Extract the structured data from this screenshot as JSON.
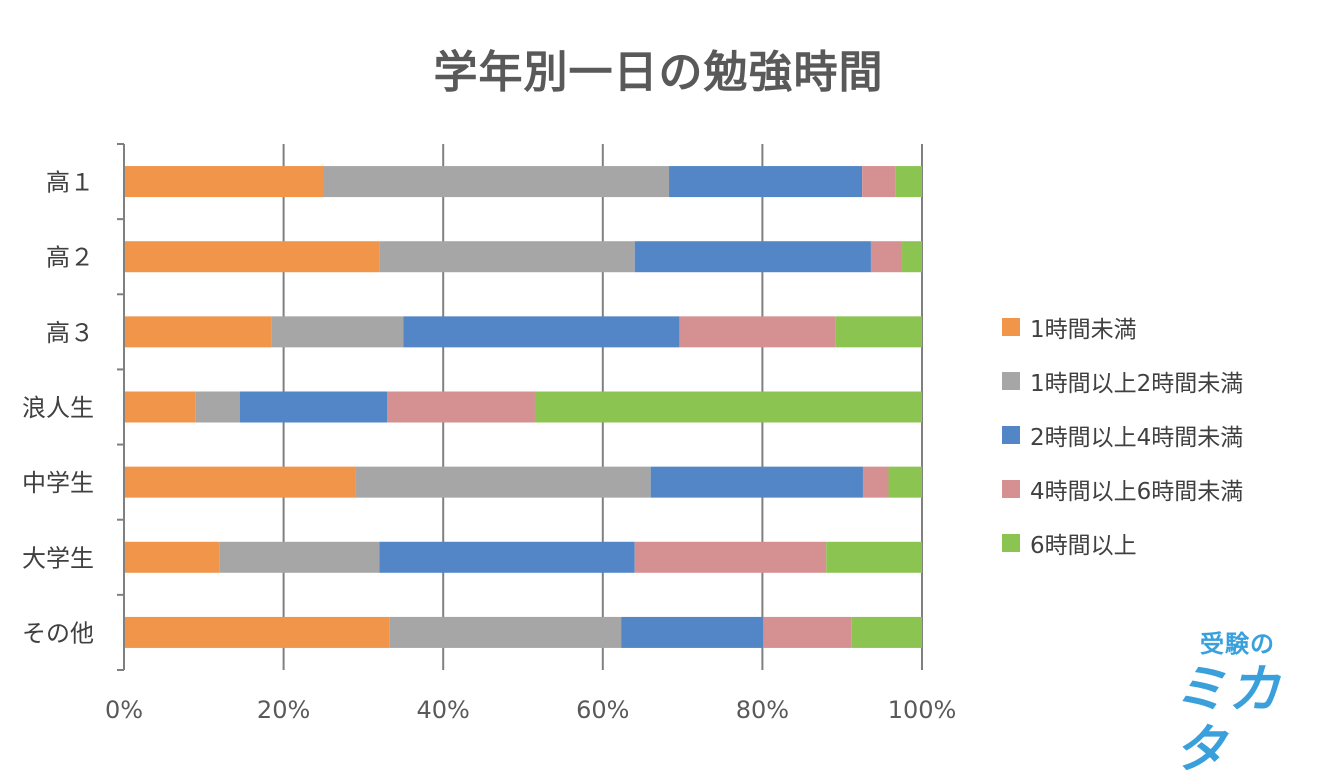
{
  "chart_data": {
    "type": "bar",
    "orientation": "horizontal",
    "stacked": "percent",
    "title": "学年別一日の勉強時間",
    "categories": [
      "高１",
      "高２",
      "高３",
      "浪人生",
      "中学生",
      "大学生",
      "その他"
    ],
    "series": [
      {
        "name": "1時間未満",
        "color": "#F0954A",
        "values": [
          25,
          32,
          18.5,
          9,
          29,
          12,
          33.3
        ]
      },
      {
        "name": "1時間以上2時間未満",
        "color": "#A6A6A6",
        "values": [
          43.3,
          32,
          16.5,
          5.5,
          37,
          20,
          29
        ]
      },
      {
        "name": "2時間以上4時間未満",
        "color": "#5286C6",
        "values": [
          24.2,
          29.6,
          34.6,
          18.5,
          26.6,
          32,
          17.8
        ]
      },
      {
        "name": "4時間以上6時間未満",
        "color": "#D59191",
        "values": [
          4.2,
          3.9,
          19.6,
          18.5,
          3.2,
          24,
          11.1
        ]
      },
      {
        "name": "6時間以上",
        "color": "#8CC452",
        "values": [
          3.3,
          2.5,
          10.8,
          48.5,
          4.2,
          12,
          8.8
        ]
      }
    ],
    "x_ticks": [
      "0%",
      "20%",
      "40%",
      "60%",
      "80%",
      "100%"
    ],
    "xlim": [
      0,
      100
    ],
    "grid": true,
    "legend_position": "right"
  },
  "logo": {
    "top_text": "受験の",
    "bottom_text": "ミカタ"
  }
}
